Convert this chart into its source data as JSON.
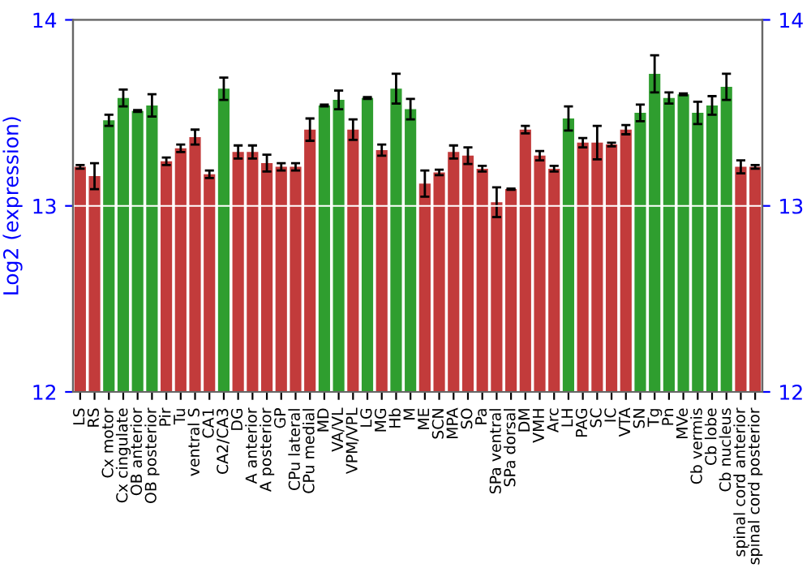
{
  "chart_data": {
    "type": "bar",
    "ylabel": "Log2 (expression)",
    "categories": [
      "LS",
      "RS",
      "Cx motor",
      "Cx cingulate",
      "OB anterior",
      "OB posterior",
      "Pir",
      "Tu",
      "ventral S",
      "CA1",
      "CA2/CA3",
      "DG",
      "A anterior",
      "A posterior",
      "GP",
      "CPu lateral",
      "CPu medial",
      "MD",
      "VA/VL",
      "VPM/VPL",
      "LG",
      "MG",
      "Hb",
      "M",
      "ME",
      "SCN",
      "MPA",
      "SO",
      "Pa",
      "SPa ventral",
      "SPa dorsal",
      "DM",
      "VMH",
      "Arc",
      "LH",
      "PAG",
      "SC",
      "IC",
      "VTA",
      "SN",
      "Tg",
      "Pn",
      "MVe",
      "Cb vermis",
      "Cb lobe",
      "Cb nucleus",
      "spinal cord anterior",
      "spinal cord posterior"
    ],
    "values": [
      13.21,
      13.16,
      13.46,
      13.58,
      13.51,
      13.54,
      13.24,
      13.31,
      13.37,
      13.17,
      13.63,
      13.29,
      13.29,
      13.23,
      13.21,
      13.21,
      13.41,
      13.54,
      13.57,
      13.41,
      13.58,
      13.3,
      13.63,
      13.52,
      13.12,
      13.18,
      13.29,
      13.27,
      13.2,
      13.02,
      13.09,
      13.41,
      13.27,
      13.2,
      13.47,
      13.34,
      13.34,
      13.33,
      13.41,
      13.5,
      13.71,
      13.58,
      13.6,
      13.5,
      13.54,
      13.64,
      13.21,
      13.21
    ],
    "errors": [
      0.01,
      0.07,
      0.03,
      0.045,
      0.005,
      0.06,
      0.02,
      0.02,
      0.04,
      0.02,
      0.06,
      0.035,
      0.035,
      0.045,
      0.02,
      0.02,
      0.06,
      0.005,
      0.05,
      0.055,
      0.005,
      0.03,
      0.08,
      0.055,
      0.07,
      0.015,
      0.035,
      0.045,
      0.015,
      0.08,
      0.003,
      0.02,
      0.025,
      0.015,
      0.065,
      0.025,
      0.09,
      0.01,
      0.025,
      0.045,
      0.1,
      0.03,
      0.005,
      0.06,
      0.05,
      0.07,
      0.035,
      0.01
    ],
    "colors": [
      "#c23b3b",
      "#c23b3b",
      "#2f9e2f",
      "#2f9e2f",
      "#2f9e2f",
      "#2f9e2f",
      "#c23b3b",
      "#c23b3b",
      "#c23b3b",
      "#c23b3b",
      "#2f9e2f",
      "#c23b3b",
      "#c23b3b",
      "#c23b3b",
      "#c23b3b",
      "#c23b3b",
      "#c23b3b",
      "#2f9e2f",
      "#2f9e2f",
      "#c23b3b",
      "#2f9e2f",
      "#c23b3b",
      "#2f9e2f",
      "#2f9e2f",
      "#c23b3b",
      "#c23b3b",
      "#c23b3b",
      "#c23b3b",
      "#c23b3b",
      "#c23b3b",
      "#c23b3b",
      "#c23b3b",
      "#c23b3b",
      "#c23b3b",
      "#2f9e2f",
      "#c23b3b",
      "#c23b3b",
      "#c23b3b",
      "#c23b3b",
      "#2f9e2f",
      "#2f9e2f",
      "#2f9e2f",
      "#2f9e2f",
      "#2f9e2f",
      "#2f9e2f",
      "#2f9e2f",
      "#c23b3b",
      "#c23b3b"
    ],
    "ylim": [
      12,
      14
    ],
    "yticks": [
      12,
      13,
      14
    ],
    "y2lim": [
      12,
      14
    ],
    "y2ticks": [
      12,
      13,
      14
    ],
    "grid": "y"
  }
}
